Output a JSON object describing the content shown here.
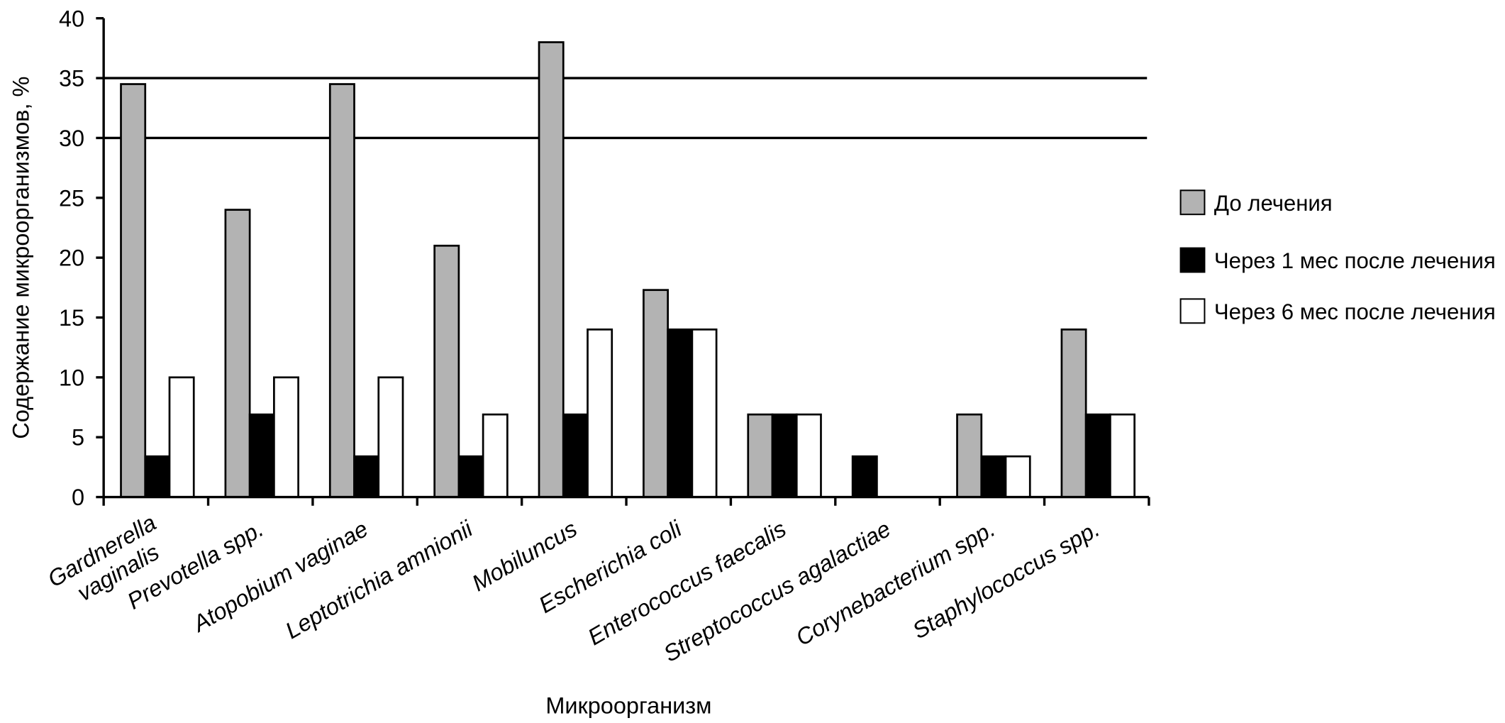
{
  "chart_data": {
    "type": "bar",
    "xlabel": "Микроорганизм",
    "ylabel": "Содержание микроорганизмов, %",
    "ylim": [
      0,
      40
    ],
    "yticks": [
      0,
      5,
      10,
      15,
      20,
      25,
      30,
      35,
      40
    ],
    "gridlines": [
      30,
      35
    ],
    "legend_position": "right",
    "categories": [
      "Gardnerella vaginalis",
      "Prevotella spp.",
      "Atopobium vaginae",
      "Leptotrichia amnionii",
      "Mobiluncus",
      "Escherichia coli",
      "Enterococcus faecalis",
      "Streptococcus agalactiae",
      "Corynebacterium spp.",
      "Staphylococcus spp."
    ],
    "series": [
      {
        "name": "До лечения",
        "color": "#b3b3b3",
        "values": [
          34.5,
          24,
          34.5,
          21,
          38,
          17.3,
          6.9,
          0,
          6.9,
          14
        ]
      },
      {
        "name": "Через 1 мес после лечения",
        "color": "#000000",
        "values": [
          3.4,
          6.9,
          3.4,
          3.4,
          6.9,
          14,
          6.9,
          3.4,
          3.4,
          6.9
        ]
      },
      {
        "name": "Через 6 мес после лечения",
        "color": "#ffffff",
        "values": [
          10,
          10,
          10,
          6.9,
          14,
          14,
          6.9,
          0,
          3.4,
          6.9
        ]
      }
    ]
  }
}
